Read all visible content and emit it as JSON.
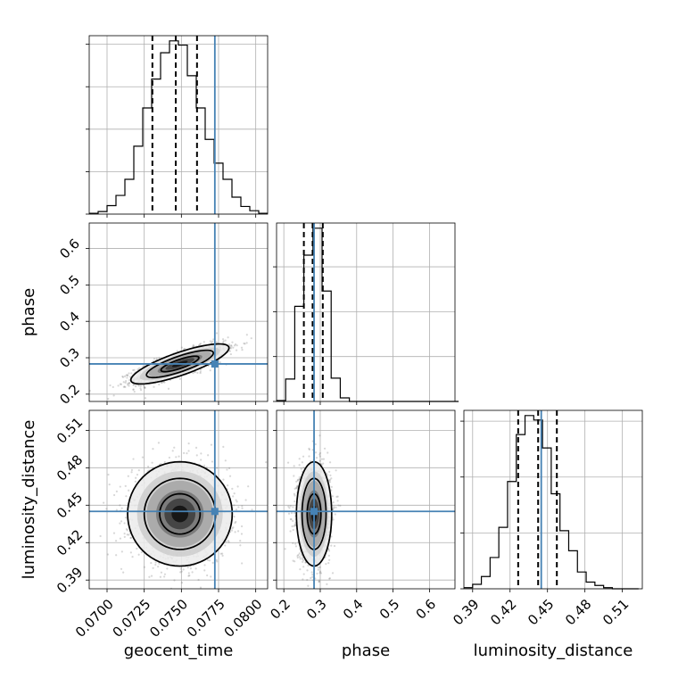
{
  "chart_data": {
    "type": "corner",
    "parameters": [
      "geocent_time",
      "phase",
      "luminosity_distance"
    ],
    "colors": {
      "truth": "#4682b4",
      "hist": "#000000",
      "contour": "#000000",
      "samples": "#6e6e6e"
    },
    "truths": {
      "geocent_time": 0.07725,
      "phase": 0.283,
      "luminosity_distance": 0.445
    },
    "axes": {
      "geocent_time": {
        "range": [
          0.0688,
          0.0808
        ],
        "ticks": [
          0.07,
          0.0725,
          0.075,
          0.0775,
          0.08
        ],
        "tick_labels": [
          "0.0700",
          "0.0725",
          "0.0750",
          "0.0775",
          "0.0800"
        ]
      },
      "phase": {
        "range": [
          0.18,
          0.67
        ],
        "ticks": [
          0.2,
          0.3,
          0.4,
          0.5,
          0.6
        ],
        "tick_labels": [
          "0.2",
          "0.3",
          "0.4",
          "0.5",
          "0.6"
        ]
      },
      "luminosity_distance": {
        "range": [
          0.383,
          0.526
        ],
        "ticks": [
          0.39,
          0.42,
          0.45,
          0.48,
          0.51
        ],
        "tick_labels": [
          "0.39",
          "0.42",
          "0.45",
          "0.48",
          "0.51"
        ]
      }
    },
    "diagonal": [
      {
        "parameter": "geocent_time",
        "bin_edges": [
          0.0688,
          0.0694,
          0.07,
          0.0706,
          0.0712,
          0.0718,
          0.0724,
          0.073,
          0.0736,
          0.0742,
          0.0748,
          0.0754,
          0.076,
          0.0766,
          0.0772,
          0.0778,
          0.0784,
          0.079,
          0.0796,
          0.0802,
          0.0808
        ],
        "counts": [
          1,
          3,
          10,
          22,
          41,
          80,
          125,
          159,
          190,
          204,
          199,
          163,
          125,
          88,
          60,
          41,
          20,
          9,
          4,
          1
        ],
        "quantiles": [
          0.07305,
          0.07462,
          0.07605
        ]
      },
      {
        "parameter": "phase",
        "bin_edges": [
          0.18,
          0.205,
          0.23,
          0.255,
          0.28,
          0.305,
          0.33,
          0.355,
          0.38,
          0.405,
          0.43,
          0.455,
          0.48,
          0.505,
          0.53,
          0.555,
          0.58,
          0.605,
          0.63,
          0.655,
          0.68
        ],
        "counts": [
          1,
          25,
          106,
          163,
          193,
          123,
          26,
          4,
          0,
          0,
          0,
          0,
          0,
          0,
          0,
          0,
          0,
          0,
          0,
          0
        ],
        "quantiles": [
          0.255,
          0.279,
          0.307
        ]
      },
      {
        "parameter": "luminosity_distance",
        "bin_edges": [
          0.383,
          0.39,
          0.397,
          0.404,
          0.411,
          0.418,
          0.425,
          0.432,
          0.439,
          0.446,
          0.453,
          0.46,
          0.467,
          0.474,
          0.481,
          0.488,
          0.495,
          0.502,
          0.509,
          0.516,
          0.523
        ],
        "counts": [
          1,
          4,
          11,
          28,
          55,
          96,
          138,
          155,
          151,
          126,
          85,
          52,
          34,
          15,
          6,
          3,
          1,
          0,
          0,
          0
        ],
        "quantiles": [
          0.4265,
          0.4425,
          0.4575
        ]
      }
    ],
    "pairs": [
      {
        "x": "geocent_time",
        "y": "phase",
        "mean": [
          0.0749,
          0.283
        ],
        "sd": [
          0.0015,
          0.025
        ],
        "corr": 0.8
      },
      {
        "x": "geocent_time",
        "y": "luminosity_distance",
        "mean": [
          0.0749,
          0.443
        ],
        "sd": [
          0.0016,
          0.019
        ],
        "corr": 0
      },
      {
        "x": "phase",
        "y": "luminosity_distance",
        "mean": [
          0.283,
          0.443
        ],
        "sd": [
          0.022,
          0.019
        ],
        "corr": 0
      }
    ]
  }
}
